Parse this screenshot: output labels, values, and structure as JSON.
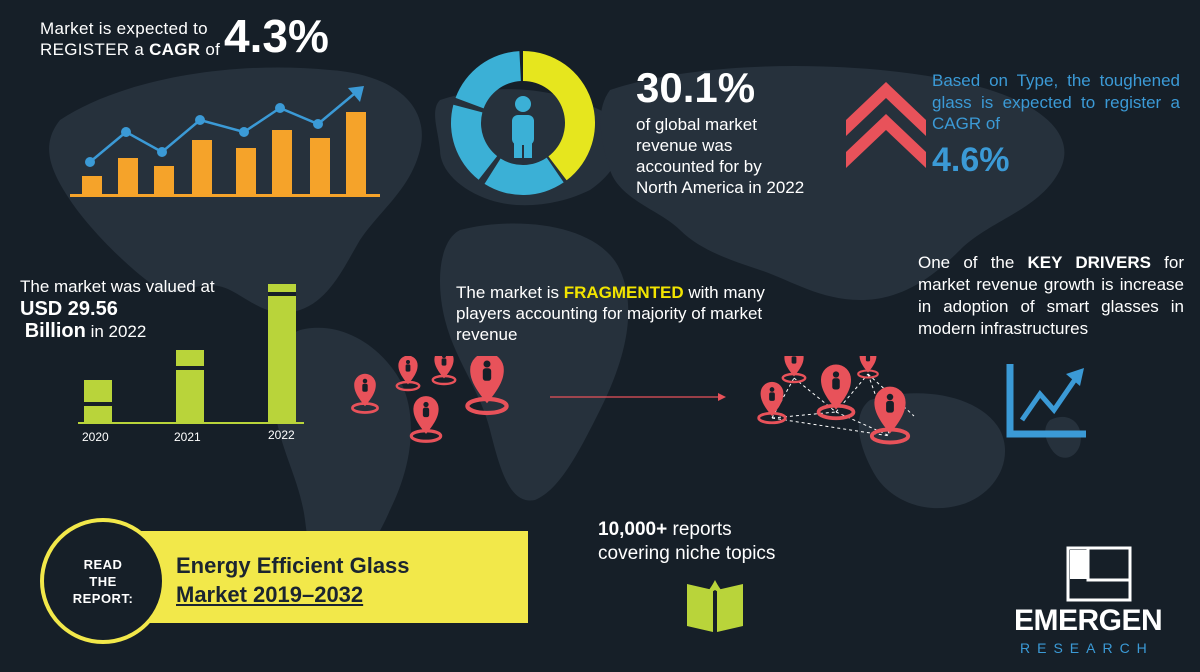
{
  "cagr": {
    "line1": "Market is expected to",
    "line2_pre": "REGISTER a ",
    "line2_bold": "CAGR",
    "line2_post": " of",
    "value": "4.3%"
  },
  "north_america": {
    "value": "30.1%",
    "description": "of global market revenue was accounted for by North America in 2022",
    "share": 0.301
  },
  "type": {
    "text": "Based on Type, the toughened glass is expected to register a CAGR of",
    "value": "4.6%"
  },
  "valuation": {
    "line1": "The market was valued at",
    "amount": "USD  29.56",
    "unit": "Billion",
    "suffix": " in 2022",
    "years": [
      "2020",
      "2021",
      "2022"
    ]
  },
  "fragmented": {
    "pre": "The market is ",
    "highlight": "FRAGMENTED",
    "post": " with many players accounting for majority of market revenue"
  },
  "key_drivers": {
    "pre": "One of the ",
    "bold": "KEY DRIVERS",
    "post": " for market revenue growth is increase in adoption of smart glasses in modern infrastructures"
  },
  "reports": {
    "bold": "10,000+",
    "line1_post": " reports",
    "line2": "covering niche topics"
  },
  "read_report": {
    "lines": [
      "READ",
      "THE",
      "REPORT:"
    ],
    "title_line1": "Energy Efficient Glass",
    "title_line2": "Market 2019–2032"
  },
  "logo": {
    "name": "EMERGEN",
    "sub": "RESEARCH"
  },
  "colors": {
    "background": "#161f28",
    "yellow": "#f2e84a",
    "blue": "#3b9ad6",
    "orange": "#f5a32a",
    "red": "#e8525a",
    "green": "#b9d43a",
    "highlight": "#f2e400"
  }
}
